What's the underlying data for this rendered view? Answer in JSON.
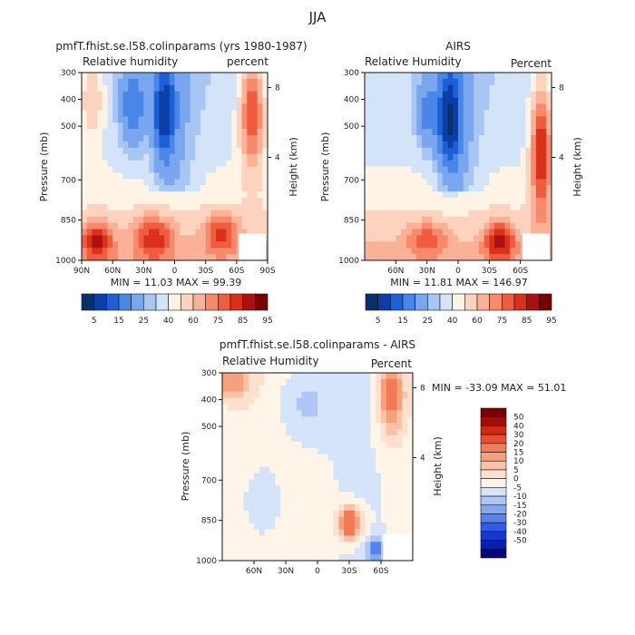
{
  "figure": {
    "title": "JJA"
  },
  "colors": {
    "rh_levels": [
      "#08306b",
      "#0b3fa8",
      "#1f5fd6",
      "#4a86e8",
      "#7aa6ef",
      "#a8c6f4",
      "#d3e3f8",
      "#fff3e6",
      "#fdd3bf",
      "#fbb197",
      "#f78a6c",
      "#ef5c3f",
      "#d9311b",
      "#ad1010",
      "#7a0000"
    ],
    "diff_levels": [
      "#08087a",
      "#0a20a8",
      "#1538d0",
      "#2f5ce6",
      "#5a82ec",
      "#85a6f1",
      "#adc6f5",
      "#d6e4fa",
      "#fff4e8",
      "#fde0cd",
      "#fbc2a8",
      "#f7a07e",
      "#f27a57",
      "#e84f31",
      "#cf2a13",
      "#a30c08",
      "#7a0000"
    ]
  },
  "chart_data": [
    {
      "id": "model",
      "type": "heatmap",
      "title": "pmfT.fhist.se.l58.colinparams (yrs 1980-1987)",
      "left_label": "Relative humidity",
      "right_label": "percent",
      "ylabel": "Pressure (mb)",
      "y2label": "Height (km)",
      "x_ticks": [
        "90N",
        "60N",
        "30N",
        "0",
        "30S",
        "60S",
        "90S"
      ],
      "x_tick_vals": [
        90,
        60,
        30,
        0,
        -30,
        -60,
        -90
      ],
      "xlim": [
        90,
        -90
      ],
      "y_ticks": [
        "300",
        "400",
        "500",
        "700",
        "850",
        "1000"
      ],
      "y_tick_vals": [
        300,
        400,
        500,
        700,
        850,
        1000
      ],
      "ylim": [
        300,
        1000
      ],
      "y2_ticks": [
        "8",
        "4"
      ],
      "y2_tick_vals": [
        356,
        616
      ],
      "stats": "MIN = 11.03   MAX = 99.39",
      "colorbar_labels": [
        "5",
        "15",
        "25",
        "40",
        "60",
        "75",
        "85",
        "95"
      ],
      "features": [
        {
          "lat": 10,
          "p": 450,
          "value": 8,
          "slat": 10,
          "sp": 170
        },
        {
          "lat": 40,
          "p": 420,
          "value": 30,
          "slat": 12,
          "sp": 150
        },
        {
          "lat": 20,
          "p": 920,
          "value": 90,
          "slat": 18,
          "sp": 80
        },
        {
          "lat": -45,
          "p": 900,
          "value": 88,
          "slat": 16,
          "sp": 70
        },
        {
          "lat": 75,
          "p": 930,
          "value": 92,
          "slat": 15,
          "sp": 70
        },
        {
          "lat": -75,
          "p": 450,
          "value": 85,
          "slat": 12,
          "sp": 220
        },
        {
          "lat": 80,
          "p": 400,
          "value": 70,
          "slat": 12,
          "sp": 160
        }
      ]
    },
    {
      "id": "airs",
      "type": "heatmap",
      "title": "AIRS",
      "left_label": "Relative Humidity",
      "right_label": "Percent",
      "ylabel": "Pressure (mb)",
      "y2label": "Height (km)",
      "x_ticks": [
        "60N",
        "30N",
        "0",
        "30S",
        "60S"
      ],
      "x_tick_vals": [
        60,
        30,
        0,
        -30,
        -60
      ],
      "xlim": [
        90,
        -90
      ],
      "y_ticks": [
        "300",
        "400",
        "500",
        "700",
        "850",
        "1000"
      ],
      "y_tick_vals": [
        300,
        400,
        500,
        700,
        850,
        1000
      ],
      "ylim": [
        300,
        1000
      ],
      "y2_ticks": [
        "8",
        "4"
      ],
      "y2_tick_vals": [
        356,
        616
      ],
      "stats": "MIN = 11.81   MAX = 146.97",
      "colorbar_labels": [
        "5",
        "15",
        "25",
        "40",
        "60",
        "75",
        "85",
        "95"
      ],
      "features": [
        {
          "lat": 8,
          "p": 470,
          "value": 5,
          "slat": 11,
          "sp": 180
        },
        {
          "lat": 30,
          "p": 450,
          "value": 35,
          "slat": 10,
          "sp": 120
        },
        {
          "lat": -40,
          "p": 930,
          "value": 95,
          "slat": 14,
          "sp": 70
        },
        {
          "lat": 30,
          "p": 920,
          "value": 85,
          "slat": 18,
          "sp": 60
        },
        {
          "lat": -80,
          "p": 600,
          "value": 90,
          "slat": 10,
          "sp": 260
        }
      ]
    },
    {
      "id": "diff",
      "type": "heatmap",
      "title": "pmfT.fhist.se.l58.colinparams - AIRS",
      "left_label": "Relative Humidity",
      "right_label": "Percent",
      "ylabel": "Pressure (mb)",
      "y2label": "Height (km)",
      "x_ticks": [
        "60N",
        "30N",
        "0",
        "30S",
        "60S"
      ],
      "x_tick_vals": [
        60,
        30,
        0,
        -30,
        -60
      ],
      "xlim": [
        90,
        -90
      ],
      "y_ticks": [
        "300",
        "400",
        "500",
        "700",
        "850",
        "1000"
      ],
      "y_tick_vals": [
        300,
        400,
        500,
        700,
        850,
        1000
      ],
      "ylim": [
        300,
        1000
      ],
      "y2_ticks": [
        "8",
        "4"
      ],
      "y2_tick_vals": [
        356,
        616
      ],
      "stats": "MIN = -33.09   MAX =  51.01",
      "colorbar_labels": [
        "50",
        "40",
        "30",
        "20",
        "15",
        "10",
        "5",
        "0",
        "-5",
        "-10",
        "-15",
        "-20",
        "-30",
        "-40",
        "-50"
      ],
      "features": [
        {
          "lat": -30,
          "p": 860,
          "value": 30,
          "slat": 12,
          "sp": 60
        },
        {
          "lat": 80,
          "p": 330,
          "value": 20,
          "slat": 18,
          "sp": 80
        },
        {
          "lat": -70,
          "p": 380,
          "value": 25,
          "slat": 12,
          "sp": 150
        },
        {
          "lat": 10,
          "p": 420,
          "value": -6,
          "slat": 30,
          "sp": 150
        },
        {
          "lat": -55,
          "p": 960,
          "value": -20,
          "slat": 8,
          "sp": 50
        },
        {
          "lat": 50,
          "p": 780,
          "value": -4,
          "slat": 20,
          "sp": 150
        }
      ]
    }
  ]
}
